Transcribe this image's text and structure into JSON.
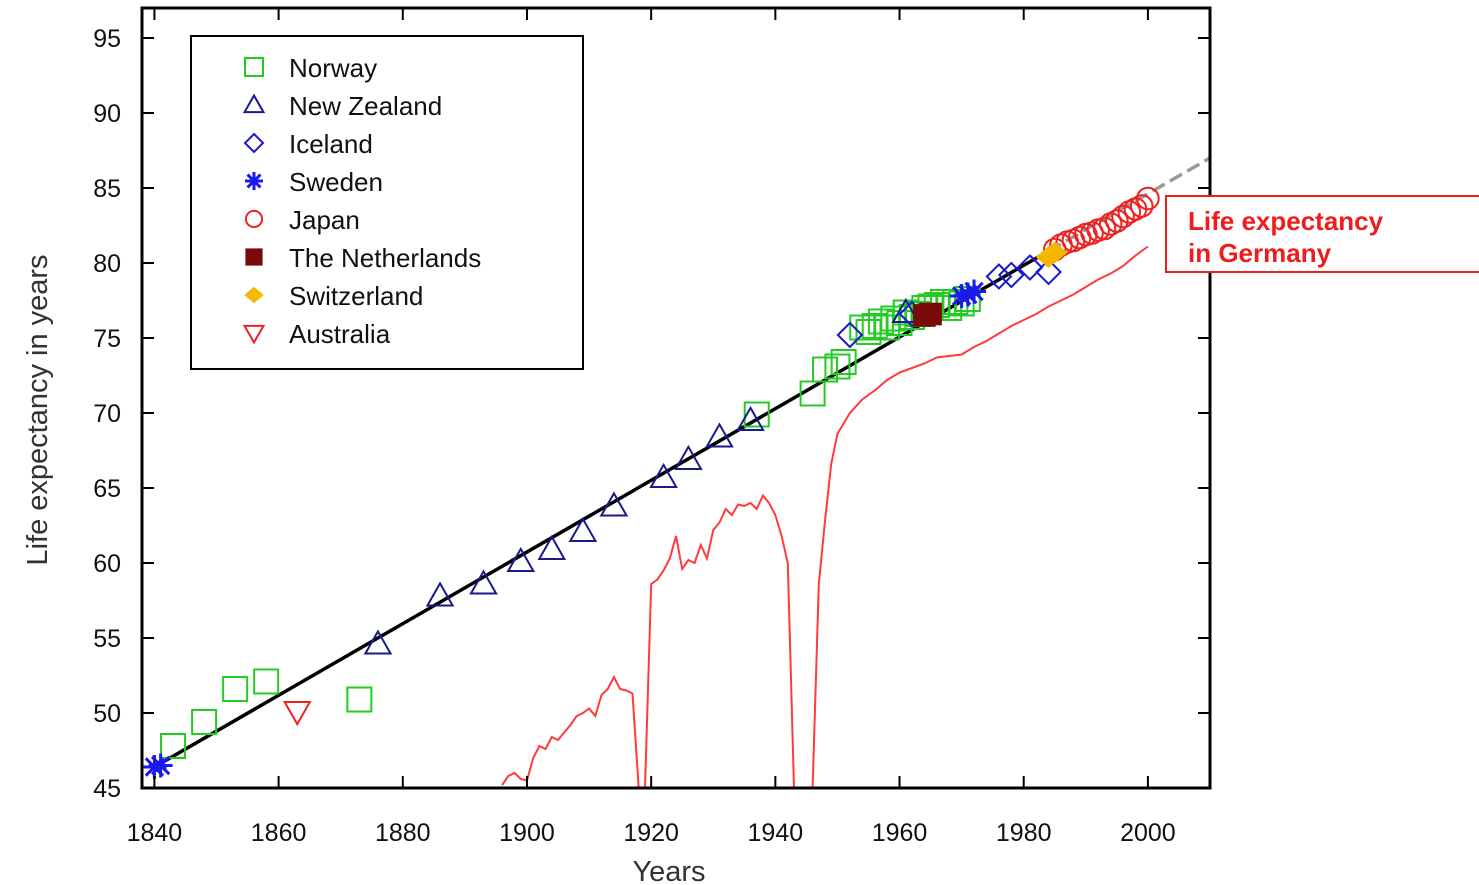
{
  "chart_data": {
    "type": "scatter",
    "xlabel": "Years",
    "ylabel": "Life expectancy in years",
    "xlim": [
      1838,
      2010
    ],
    "ylim": [
      45,
      97
    ],
    "xticks": [
      1840,
      1860,
      1880,
      1900,
      1920,
      1940,
      1960,
      1980,
      2000
    ],
    "yticks": [
      45,
      50,
      55,
      60,
      65,
      70,
      75,
      80,
      85,
      90,
      95
    ],
    "grid": false,
    "legend_position": "top-left",
    "series": [
      {
        "name": "Norway",
        "marker": "square-open",
        "color": "#22cc22",
        "points": [
          [
            1843,
            47.8
          ],
          [
            1848,
            49.4
          ],
          [
            1853,
            51.6
          ],
          [
            1858,
            52.1
          ],
          [
            1873,
            50.9
          ],
          [
            1937,
            69.9
          ],
          [
            1946,
            71.3
          ],
          [
            1948,
            72.9
          ],
          [
            1950,
            73.1
          ],
          [
            1951,
            73.4
          ],
          [
            1954,
            75.7
          ],
          [
            1955,
            75.4
          ],
          [
            1956,
            75.8
          ],
          [
            1957,
            76.1
          ],
          [
            1958,
            75.7
          ],
          [
            1959,
            76.3
          ],
          [
            1960,
            76.0
          ],
          [
            1961,
            76.7
          ],
          [
            1962,
            76.4
          ],
          [
            1963,
            76.6
          ],
          [
            1964,
            77.0
          ],
          [
            1965,
            77.1
          ],
          [
            1966,
            77.2
          ],
          [
            1967,
            77.4
          ],
          [
            1968,
            77.0
          ],
          [
            1969,
            77.4
          ],
          [
            1970,
            77.3
          ],
          [
            1971,
            77.6
          ]
        ]
      },
      {
        "name": "New Zealand",
        "marker": "triangle-up-open",
        "color": "#1a1a8c",
        "points": [
          [
            1876,
            54.6
          ],
          [
            1886,
            57.8
          ],
          [
            1893,
            58.6
          ],
          [
            1899,
            60.1
          ],
          [
            1904,
            60.9
          ],
          [
            1909,
            62.1
          ],
          [
            1914,
            63.8
          ],
          [
            1922,
            65.7
          ],
          [
            1926,
            66.9
          ],
          [
            1931,
            68.4
          ],
          [
            1936,
            69.5
          ],
          [
            1961,
            76.7
          ]
        ]
      },
      {
        "name": "Iceland",
        "marker": "diamond-open",
        "color": "#1a1acc",
        "points": [
          [
            1952,
            75.2
          ],
          [
            1962,
            76.6
          ],
          [
            1976,
            79.1
          ],
          [
            1978,
            79.2
          ],
          [
            1981,
            79.7
          ],
          [
            1984,
            79.4
          ]
        ]
      },
      {
        "name": "Sweden",
        "marker": "asterisk",
        "color": "#1a1aee",
        "points": [
          [
            1840,
            46.4
          ],
          [
            1841,
            46.5
          ],
          [
            1970,
            77.8
          ],
          [
            1971,
            77.9
          ],
          [
            1972,
            78.1
          ]
        ]
      },
      {
        "name": "Japan",
        "marker": "circle-open",
        "color": "#ee2222",
        "points": [
          [
            1985,
            80.9
          ],
          [
            1986,
            81.2
          ],
          [
            1987,
            81.4
          ],
          [
            1988,
            81.5
          ],
          [
            1989,
            81.7
          ],
          [
            1990,
            81.9
          ],
          [
            1991,
            82.0
          ],
          [
            1992,
            82.2
          ],
          [
            1993,
            82.3
          ],
          [
            1994,
            82.6
          ],
          [
            1995,
            82.8
          ],
          [
            1996,
            83.1
          ],
          [
            1997,
            83.4
          ],
          [
            1998,
            83.6
          ],
          [
            1999,
            83.8
          ],
          [
            2000,
            84.3
          ]
        ]
      },
      {
        "name": "The Netherlands",
        "marker": "square-filled",
        "color": "#7a0a0a",
        "points": [
          [
            1964,
            76.5
          ],
          [
            1965,
            76.6
          ]
        ]
      },
      {
        "name": "Switzerland",
        "marker": "diamond-filled",
        "color": "#f5b800",
        "points": [
          [
            1984,
            80.4
          ],
          [
            1985,
            80.7
          ]
        ]
      },
      {
        "name": "Australia",
        "marker": "triangle-down-open",
        "color": "#ee2222",
        "points": [
          [
            1863,
            50.1
          ]
        ]
      }
    ],
    "trend_line": {
      "x": [
        1840,
        1984
      ],
      "y": [
        46.4,
        80.8
      ],
      "color": "#000000"
    },
    "trend_extension": {
      "x": [
        1984,
        2010
      ],
      "y": [
        80.8,
        87.0
      ],
      "color": "#999999",
      "dashed": true
    },
    "germany_line": {
      "color": "#ff3b3b",
      "points": [
        [
          1896,
          45.2
        ],
        [
          1897,
          45.8
        ],
        [
          1898,
          46.0
        ],
        [
          1899,
          45.6
        ],
        [
          1900,
          45.5
        ],
        [
          1901,
          47.0
        ],
        [
          1902,
          47.8
        ],
        [
          1903,
          47.6
        ],
        [
          1904,
          48.4
        ],
        [
          1905,
          48.2
        ],
        [
          1906,
          48.7
        ],
        [
          1907,
          49.2
        ],
        [
          1908,
          49.8
        ],
        [
          1909,
          50.0
        ],
        [
          1910,
          50.3
        ],
        [
          1911,
          49.8
        ],
        [
          1912,
          51.2
        ],
        [
          1913,
          51.6
        ],
        [
          1914,
          52.4
        ],
        [
          1915,
          51.6
        ],
        [
          1916,
          51.5
        ],
        [
          1917,
          51.3
        ],
        [
          1918,
          45.0
        ],
        [
          1919,
          45.0
        ],
        [
          1920,
          58.6
        ],
        [
          1921,
          58.9
        ],
        [
          1922,
          59.5
        ],
        [
          1923,
          60.3
        ],
        [
          1924,
          61.8
        ],
        [
          1925,
          59.6
        ],
        [
          1926,
          60.2
        ],
        [
          1927,
          60.0
        ],
        [
          1928,
          61.2
        ],
        [
          1929,
          60.3
        ],
        [
          1930,
          62.2
        ],
        [
          1931,
          62.7
        ],
        [
          1932,
          63.6
        ],
        [
          1933,
          63.2
        ],
        [
          1934,
          63.9
        ],
        [
          1935,
          63.8
        ],
        [
          1936,
          64.0
        ],
        [
          1937,
          63.6
        ],
        [
          1938,
          64.5
        ],
        [
          1939,
          64.0
        ],
        [
          1940,
          63.2
        ],
        [
          1941,
          61.8
        ],
        [
          1942,
          60.0
        ],
        [
          1943,
          45.0
        ],
        [
          1945,
          45.0
        ],
        [
          1946,
          45.0
        ],
        [
          1947,
          58.6
        ],
        [
          1948,
          62.8
        ],
        [
          1949,
          66.6
        ],
        [
          1950,
          68.6
        ],
        [
          1952,
          70.0
        ],
        [
          1954,
          70.9
        ],
        [
          1956,
          71.5
        ],
        [
          1958,
          72.2
        ],
        [
          1960,
          72.7
        ],
        [
          1962,
          73.0
        ],
        [
          1964,
          73.3
        ],
        [
          1966,
          73.7
        ],
        [
          1968,
          73.8
        ],
        [
          1970,
          73.9
        ],
        [
          1972,
          74.4
        ],
        [
          1974,
          74.8
        ],
        [
          1976,
          75.3
        ],
        [
          1978,
          75.8
        ],
        [
          1980,
          76.2
        ],
        [
          1982,
          76.6
        ],
        [
          1984,
          77.1
        ],
        [
          1986,
          77.5
        ],
        [
          1988,
          77.9
        ],
        [
          1990,
          78.4
        ],
        [
          1992,
          78.9
        ],
        [
          1994,
          79.3
        ],
        [
          1996,
          79.8
        ],
        [
          1998,
          80.5
        ],
        [
          2000,
          81.1
        ]
      ]
    },
    "annotation": {
      "lines": [
        "Life expectancy",
        "in Germany"
      ],
      "color": "#ee1c1c",
      "border_color": "#ee1c1c"
    }
  }
}
